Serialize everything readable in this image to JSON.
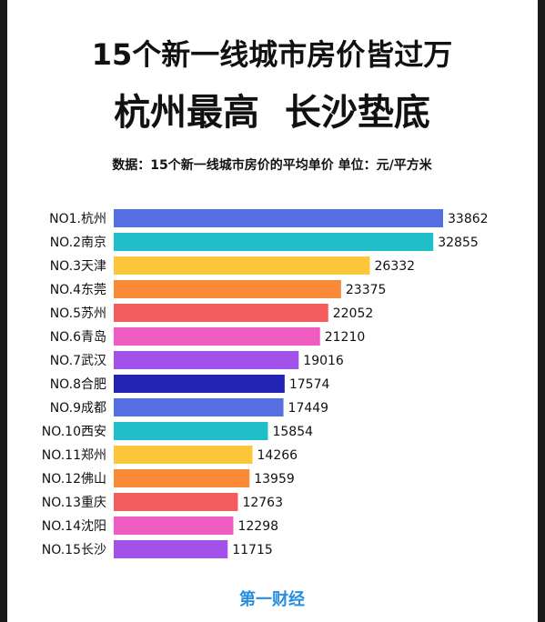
{
  "chart_data": {
    "type": "bar",
    "orientation": "horizontal",
    "title": "15个新一线城市房价皆过万",
    "subtitle": "杭州最高  长沙垫底",
    "note": "数据：15个新一线城市房价的平均单价 单位：元/平方米",
    "source": "第一财经",
    "categories": [
      "NO1.杭州",
      "NO.2南京",
      "NO.3天津",
      "NO.4东莞",
      "NO.5苏州",
      "NO.6青岛",
      "NO.7武汉",
      "NO.8合肥",
      "NO.9成都",
      "NO.10西安",
      "NO.11郑州",
      "NO.12佛山",
      "NO.13重庆",
      "NO.14沈阳",
      "NO.15长沙"
    ],
    "values": [
      33862,
      32855,
      26332,
      23375,
      22052,
      21210,
      19016,
      17574,
      17449,
      15854,
      14266,
      13959,
      12763,
      12298,
      11715
    ],
    "colors": [
      "#5470e0",
      "#1fbfca",
      "#fcc63a",
      "#f98a37",
      "#f45b5e",
      "#f05cc2",
      "#a152e8",
      "#2424b4",
      "#5470e0",
      "#1fbfca",
      "#fcc63a",
      "#f98a37",
      "#f45b5e",
      "#f05cc2",
      "#a152e8"
    ]
  }
}
